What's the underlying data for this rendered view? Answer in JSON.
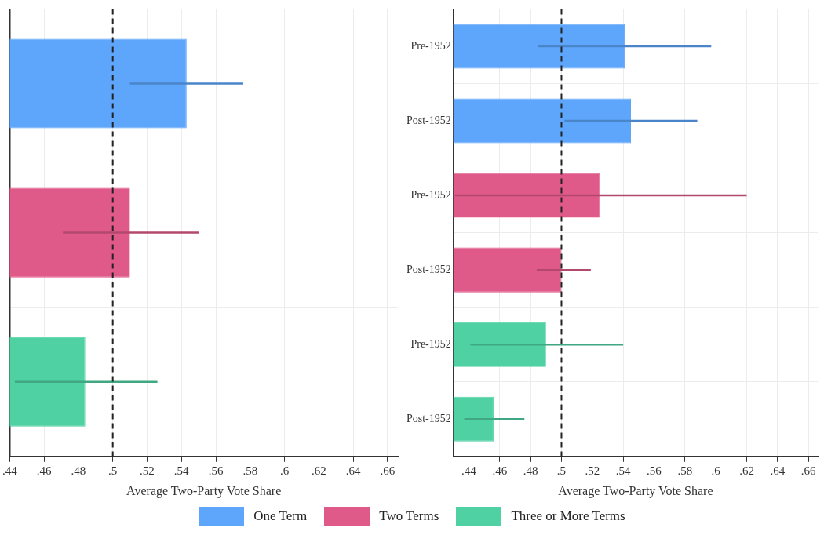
{
  "chart_data": [
    {
      "type": "bar",
      "orientation": "horizontal",
      "categories": [
        null,
        null,
        null
      ],
      "series": [
        {
          "color": "#5ea6fb",
          "values": [
            0.543,
            null,
            null
          ],
          "errors": [
            [
              0.51,
              0.576
            ],
            null,
            null
          ]
        },
        {
          "color": "#e05a89",
          "values": [
            null,
            0.51,
            null
          ],
          "errors": [
            null,
            [
              0.471,
              0.55
            ],
            null
          ]
        },
        {
          "color": "#4fd1a3",
          "values": [
            null,
            null,
            0.484
          ],
          "errors": [
            null,
            null,
            [
              0.443,
              0.526
            ]
          ]
        }
      ],
      "xlim": [
        0.44,
        0.666
      ],
      "xticks": [
        {
          "value": 0.44,
          "label": ".44"
        },
        {
          "value": 0.46,
          "label": ".46"
        },
        {
          "value": 0.48,
          "label": ".48"
        },
        {
          "value": 0.5,
          "label": ".5"
        },
        {
          "value": 0.52,
          "label": ".52"
        },
        {
          "value": 0.54,
          "label": ".54"
        },
        {
          "value": 0.56,
          "label": ".56"
        },
        {
          "value": 0.58,
          "label": ".58"
        },
        {
          "value": 0.6,
          "label": ".6"
        },
        {
          "value": 0.62,
          "label": ".62"
        },
        {
          "value": 0.64,
          "label": ".64"
        },
        {
          "value": 0.66,
          "label": ".66"
        }
      ],
      "xlabel": "Average Two-Party Vote Share",
      "grid": true,
      "legend": false,
      "ref_lines": [
        {
          "axis": "x",
          "value": 0.5,
          "color": "#222222",
          "line_style": "dashed"
        }
      ]
    },
    {
      "type": "bar",
      "orientation": "horizontal",
      "categories": [
        "Pre-1952",
        "Post-1952",
        "Pre-1952",
        "Post-1952",
        "Pre-1952",
        "Post-1952"
      ],
      "series": [
        {
          "name": "One Term",
          "color": "#5ea6fb",
          "values": [
            0.541,
            0.545,
            null,
            null,
            null,
            null
          ],
          "errors": [
            [
              0.485,
              0.597
            ],
            [
              0.502,
              0.588
            ],
            null,
            null,
            null,
            null
          ]
        },
        {
          "name": "Two Terms",
          "color": "#e05a89",
          "values": [
            null,
            null,
            0.525,
            0.5,
            null,
            null
          ],
          "errors": [
            null,
            null,
            [
              0.431,
              0.62
            ],
            [
              0.484,
              0.519
            ],
            null,
            null
          ]
        },
        {
          "name": "Three or More Terms",
          "color": "#4fd1a3",
          "values": [
            null,
            null,
            null,
            null,
            0.49,
            0.456
          ],
          "errors": [
            null,
            null,
            null,
            null,
            [
              0.441,
              0.54
            ],
            [
              0.437,
              0.476
            ]
          ]
        }
      ],
      "xlim": [
        0.43,
        0.666
      ],
      "xticks": [
        {
          "value": 0.44,
          "label": ".44"
        },
        {
          "value": 0.46,
          "label": ".46"
        },
        {
          "value": 0.48,
          "label": ".48"
        },
        {
          "value": 0.5,
          "label": ".5"
        },
        {
          "value": 0.52,
          "label": ".52"
        },
        {
          "value": 0.54,
          "label": ".54"
        },
        {
          "value": 0.56,
          "label": ".56"
        },
        {
          "value": 0.58,
          "label": ".58"
        },
        {
          "value": 0.6,
          "label": ".6"
        },
        {
          "value": 0.62,
          "label": ".62"
        },
        {
          "value": 0.64,
          "label": ".64"
        },
        {
          "value": 0.66,
          "label": ".66"
        }
      ],
      "xlabel": "Average Two-Party Vote Share",
      "grid": true,
      "legend": "bottom",
      "ref_lines": [
        {
          "axis": "x",
          "value": 0.5,
          "color": "#222222",
          "line_style": "dashed"
        }
      ]
    }
  ]
}
